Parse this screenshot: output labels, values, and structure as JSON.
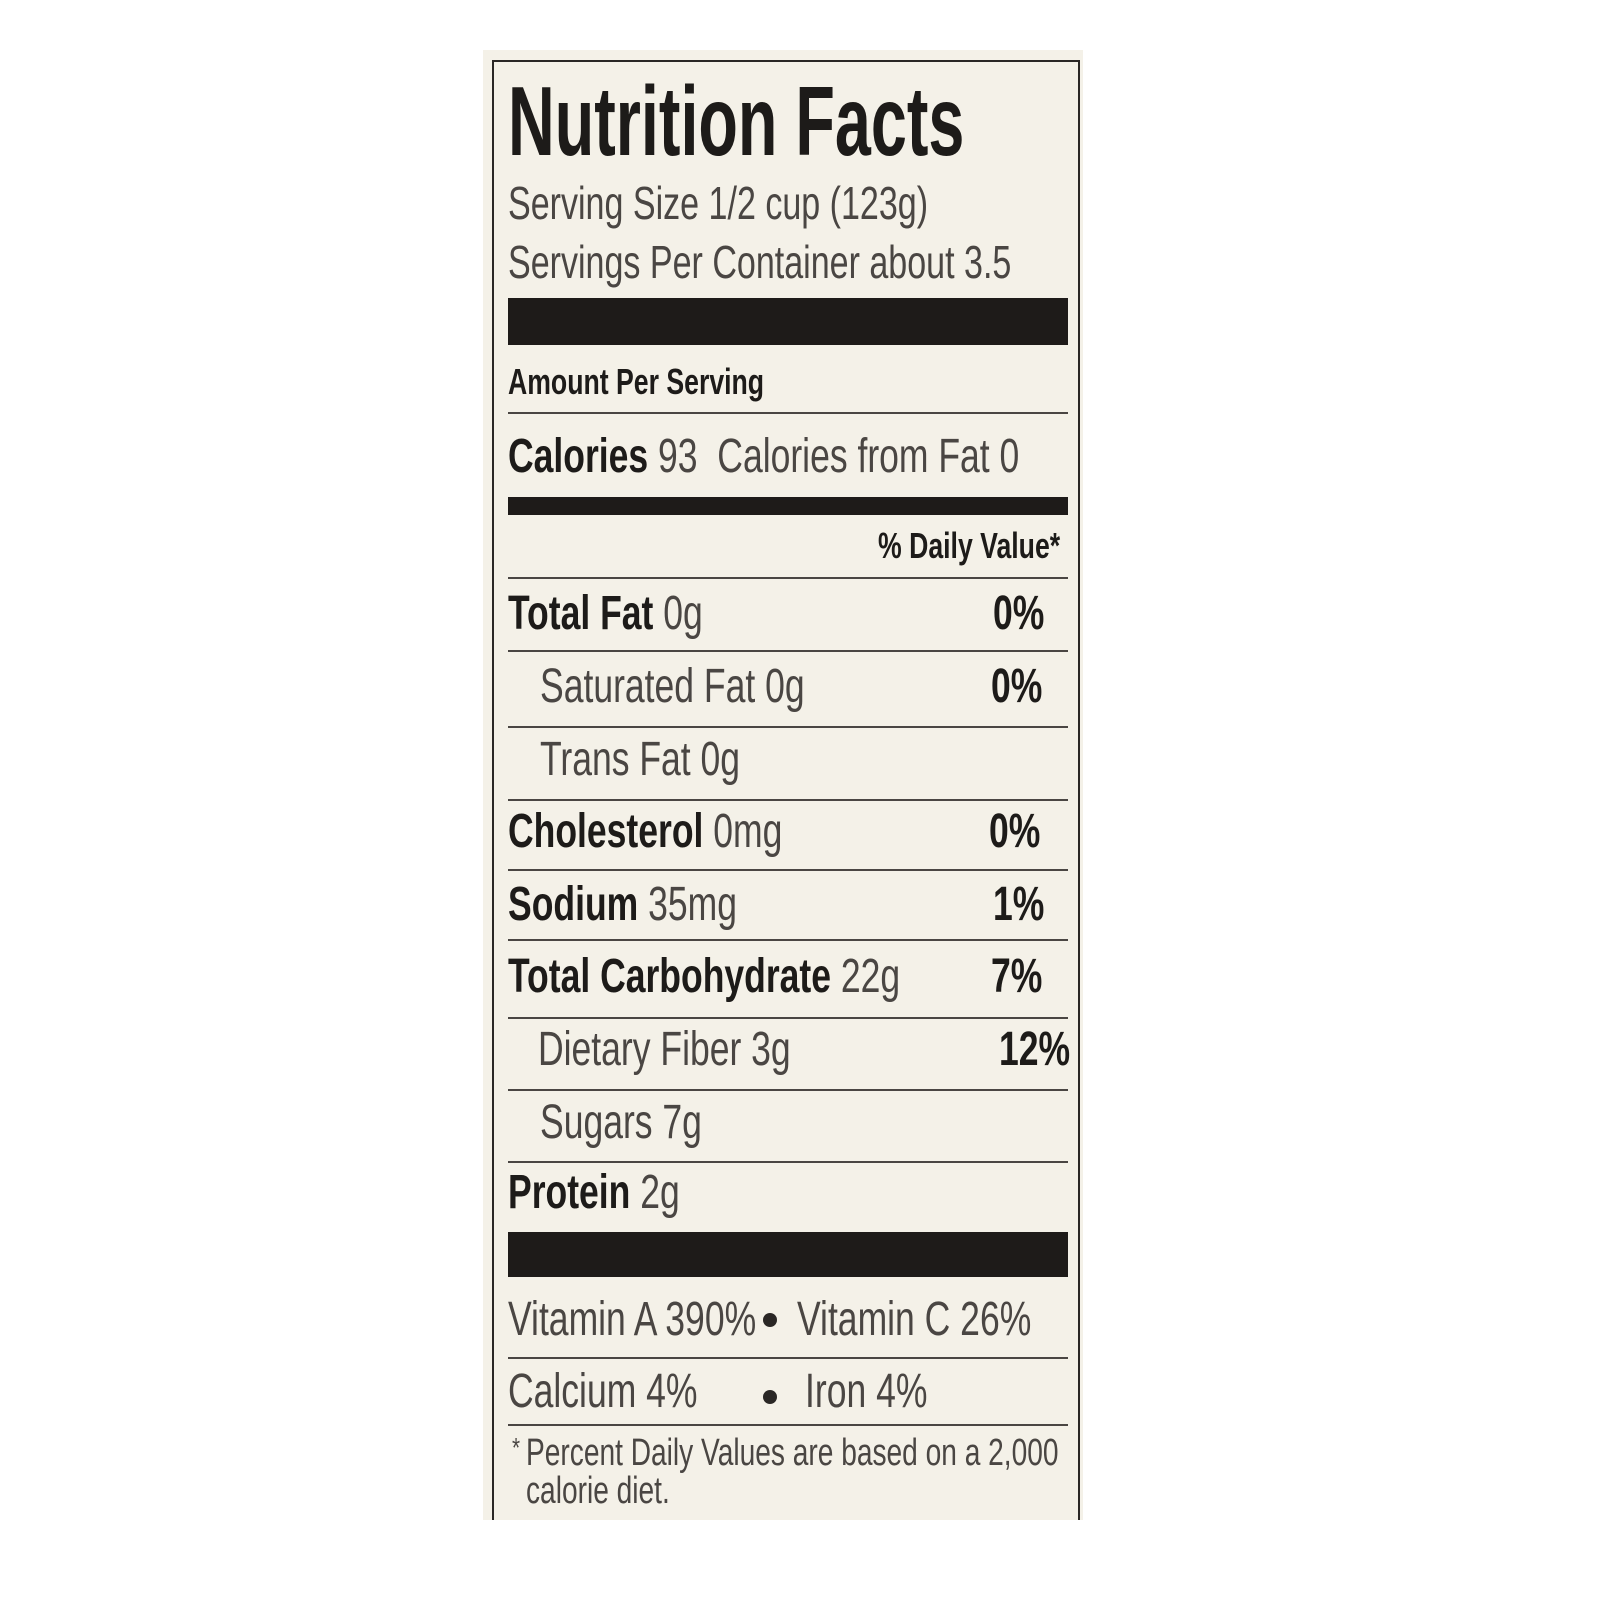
{
  "title": "Nutrition Facts",
  "serving": {
    "size": "Serving Size 1/2 cup (123g)",
    "per_container": "Servings Per Container about 3.5"
  },
  "amount_header": "Amount Per Serving",
  "calories": {
    "label": "Calories",
    "value": "93",
    "from_fat": "Calories from Fat 0"
  },
  "dv_header": "% Daily Value*",
  "rows": [
    {
      "name": "Total Fat",
      "amount": "0g",
      "dv": "0%"
    },
    {
      "name": "Saturated Fat",
      "amount": "0g",
      "dv": "0%"
    },
    {
      "name": "Trans Fat",
      "amount": "0g"
    },
    {
      "name": "Cholesterol",
      "amount": "0mg",
      "dv": "0%"
    },
    {
      "name": "Sodium",
      "amount": "35mg",
      "dv": "1%"
    },
    {
      "name": "Total Carbohydrate",
      "amount": "22g",
      "dv": "7%"
    },
    {
      "name": "Dietary Fiber",
      "amount": "3g",
      "dv": "12%"
    },
    {
      "name": "Sugars",
      "amount": "7g"
    },
    {
      "name": "Protein",
      "amount": "2g"
    }
  ],
  "vitamins": [
    "Vitamin A 390%",
    "Vitamin C 26%",
    "Calcium 4%",
    "Iron 4%"
  ],
  "footnote": {
    "mark": "*",
    "text": "Percent Daily Values are based on a 2,000 calorie diet."
  }
}
